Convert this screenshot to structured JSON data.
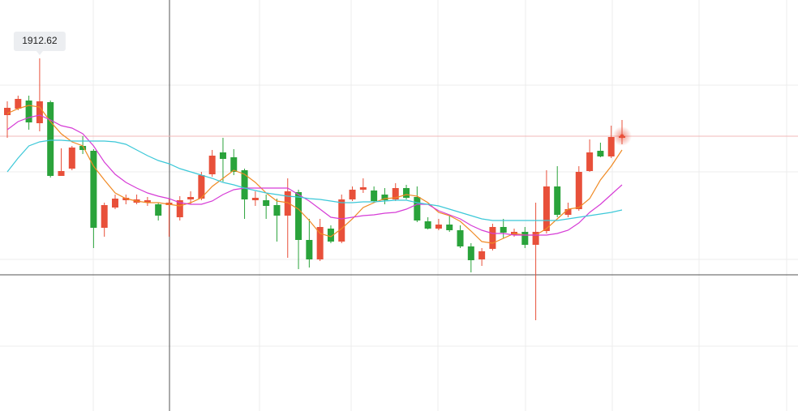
{
  "chart_data": {
    "type": "candlestick",
    "max_label": "1912.62",
    "ylim": [
      1869.12,
      1919.82
    ],
    "up_color": "#e8503a",
    "down_color": "#2aa33b",
    "last_line_color": "#f2b8b8",
    "open": [
      1905.62,
      1906.42,
      1907.42,
      1904.62,
      1907.22,
      1898.12,
      1899.02,
      1901.82,
      1901.22,
      1891.72,
      1894.22,
      1895.12,
      1894.82,
      1894.82,
      1894.62,
      1894.52,
      1893.02,
      1895.22,
      1895.32,
      1898.32,
      1901.02,
      1900.42,
      1898.82,
      1895.12,
      1895.12,
      1894.52,
      1893.22,
      1896.12,
      1890.22,
      1887.82,
      1891.62,
      1890.02,
      1895.22,
      1896.42,
      1896.32,
      1895.82,
      1895.22,
      1896.62,
      1895.52,
      1892.52,
      1891.62,
      1892.12,
      1891.42,
      1889.42,
      1887.82,
      1889.12,
      1891.82,
      1890.82,
      1891.22,
      1889.62,
      1891.32,
      1896.82,
      1893.32,
      1894.02,
      1898.72,
      1901.22,
      1900.52,
      1902.82
    ],
    "high": [
      1907.32,
      1908.02,
      1908.02,
      1912.62,
      1907.42,
      1901.52,
      1901.82,
      1903.02,
      1901.42,
      1894.82,
      1895.82,
      1895.82,
      1895.82,
      1895.52,
      1894.82,
      1895.32,
      1895.62,
      1896.22,
      1898.62,
      1901.32,
      1902.82,
      1901.42,
      1899.02,
      1896.22,
      1895.82,
      1895.32,
      1897.82,
      1896.42,
      1892.82,
      1892.82,
      1892.02,
      1895.82,
      1896.82,
      1897.82,
      1896.82,
      1896.62,
      1897.22,
      1897.02,
      1896.82,
      1893.02,
      1892.82,
      1893.22,
      1892.02,
      1889.82,
      1889.22,
      1892.22,
      1892.82,
      1891.62,
      1891.82,
      1894.82,
      1898.82,
      1899.32,
      1894.82,
      1899.32,
      1902.62,
      1902.22,
      1904.32,
      1905.02
    ],
    "low": [
      1902.82,
      1906.22,
      1903.82,
      1903.62,
      1897.92,
      1898.12,
      1898.82,
      1900.82,
      1889.22,
      1890.62,
      1894.02,
      1894.62,
      1894.62,
      1894.42,
      1892.62,
      1890.62,
      1892.62,
      1894.62,
      1895.12,
      1898.02,
      1897.42,
      1898.22,
      1892.82,
      1894.42,
      1892.82,
      1890.02,
      1888.02,
      1886.62,
      1886.82,
      1887.62,
      1889.82,
      1889.82,
      1895.02,
      1896.02,
      1894.82,
      1894.62,
      1895.02,
      1895.22,
      1892.42,
      1891.52,
      1891.42,
      1891.22,
      1889.22,
      1886.22,
      1887.02,
      1888.92,
      1890.42,
      1890.62,
      1889.22,
      1880.32,
      1891.02,
      1893.02,
      1893.02,
      1893.82,
      1898.62,
      1900.42,
      1900.32,
      1902.02
    ],
    "close": [
      1906.52,
      1907.62,
      1904.72,
      1907.32,
      1898.12,
      1898.72,
      1901.62,
      1901.32,
      1891.72,
      1894.52,
      1895.32,
      1895.42,
      1895.22,
      1895.12,
      1893.22,
      1894.82,
      1895.12,
      1895.52,
      1898.22,
      1900.62,
      1900.22,
      1898.62,
      1895.22,
      1895.42,
      1894.42,
      1893.22,
      1896.22,
      1890.22,
      1887.82,
      1891.82,
      1890.02,
      1895.22,
      1896.42,
      1896.72,
      1895.02,
      1895.12,
      1896.62,
      1895.42,
      1892.62,
      1891.62,
      1892.12,
      1891.42,
      1889.42,
      1887.72,
      1888.82,
      1891.82,
      1891.12,
      1891.22,
      1889.62,
      1891.22,
      1896.82,
      1893.32,
      1894.02,
      1898.62,
      1901.02,
      1900.52,
      1902.92,
      1903.02
    ],
    "series": [
      {
        "color": "#f08a24",
        "values": [
          1905.82,
          1906.42,
          1906.82,
          1906.62,
          1904.82,
          1903.32,
          1902.32,
          1901.82,
          1899.32,
          1897.62,
          1896.02,
          1895.32,
          1895.02,
          1894.82,
          1894.82,
          1894.62,
          1894.42,
          1894.82,
          1895.42,
          1896.82,
          1897.82,
          1898.82,
          1898.32,
          1897.32,
          1896.02,
          1895.02,
          1894.82,
          1894.02,
          1892.62,
          1891.02,
          1890.62,
          1891.62,
          1892.82,
          1894.22,
          1894.82,
          1895.32,
          1895.42,
          1895.82,
          1895.62,
          1894.82,
          1893.62,
          1893.22,
          1892.52,
          1891.32,
          1890.02,
          1889.82,
          1890.42,
          1891.02,
          1890.82,
          1890.82,
          1891.62,
          1892.82,
          1894.02,
          1894.22,
          1895.32,
          1897.62,
          1899.32,
          1901.32
        ]
      },
      {
        "color": "#d63cd6",
        "values": [
          1903.82,
          1904.82,
          1905.32,
          1905.62,
          1905.02,
          1904.32,
          1904.02,
          1903.32,
          1901.82,
          1899.82,
          1898.32,
          1897.32,
          1896.62,
          1896.02,
          1895.62,
          1895.32,
          1894.82,
          1894.62,
          1894.62,
          1895.02,
          1895.82,
          1896.42,
          1896.62,
          1896.62,
          1896.62,
          1896.62,
          1896.62,
          1895.82,
          1895.02,
          1894.02,
          1893.02,
          1892.82,
          1893.02,
          1893.22,
          1893.32,
          1893.52,
          1893.62,
          1894.02,
          1894.62,
          1894.62,
          1893.82,
          1893.32,
          1892.82,
          1892.02,
          1891.42,
          1891.02,
          1891.02,
          1890.82,
          1890.82,
          1890.82,
          1890.82,
          1891.02,
          1891.42,
          1892.32,
          1893.62,
          1894.62,
          1895.82,
          1897.02
        ]
      },
      {
        "color": "#3cc8d8",
        "values": [
          1898.62,
          1900.32,
          1901.82,
          1902.32,
          1902.52,
          1902.52,
          1902.42,
          1902.42,
          1902.42,
          1902.42,
          1902.32,
          1902.02,
          1901.32,
          1900.62,
          1900.02,
          1899.62,
          1899.02,
          1898.62,
          1898.22,
          1897.82,
          1897.32,
          1897.02,
          1896.62,
          1896.32,
          1896.02,
          1895.82,
          1895.62,
          1895.52,
          1895.32,
          1895.22,
          1895.02,
          1894.82,
          1894.82,
          1894.92,
          1894.92,
          1895.02,
          1895.12,
          1895.12,
          1894.82,
          1894.62,
          1894.42,
          1894.02,
          1893.62,
          1893.22,
          1892.82,
          1892.62,
          1892.62,
          1892.62,
          1892.62,
          1892.62,
          1892.62,
          1892.62,
          1892.82,
          1893.02,
          1893.22,
          1893.42,
          1893.62,
          1893.92
        ]
      }
    ]
  }
}
